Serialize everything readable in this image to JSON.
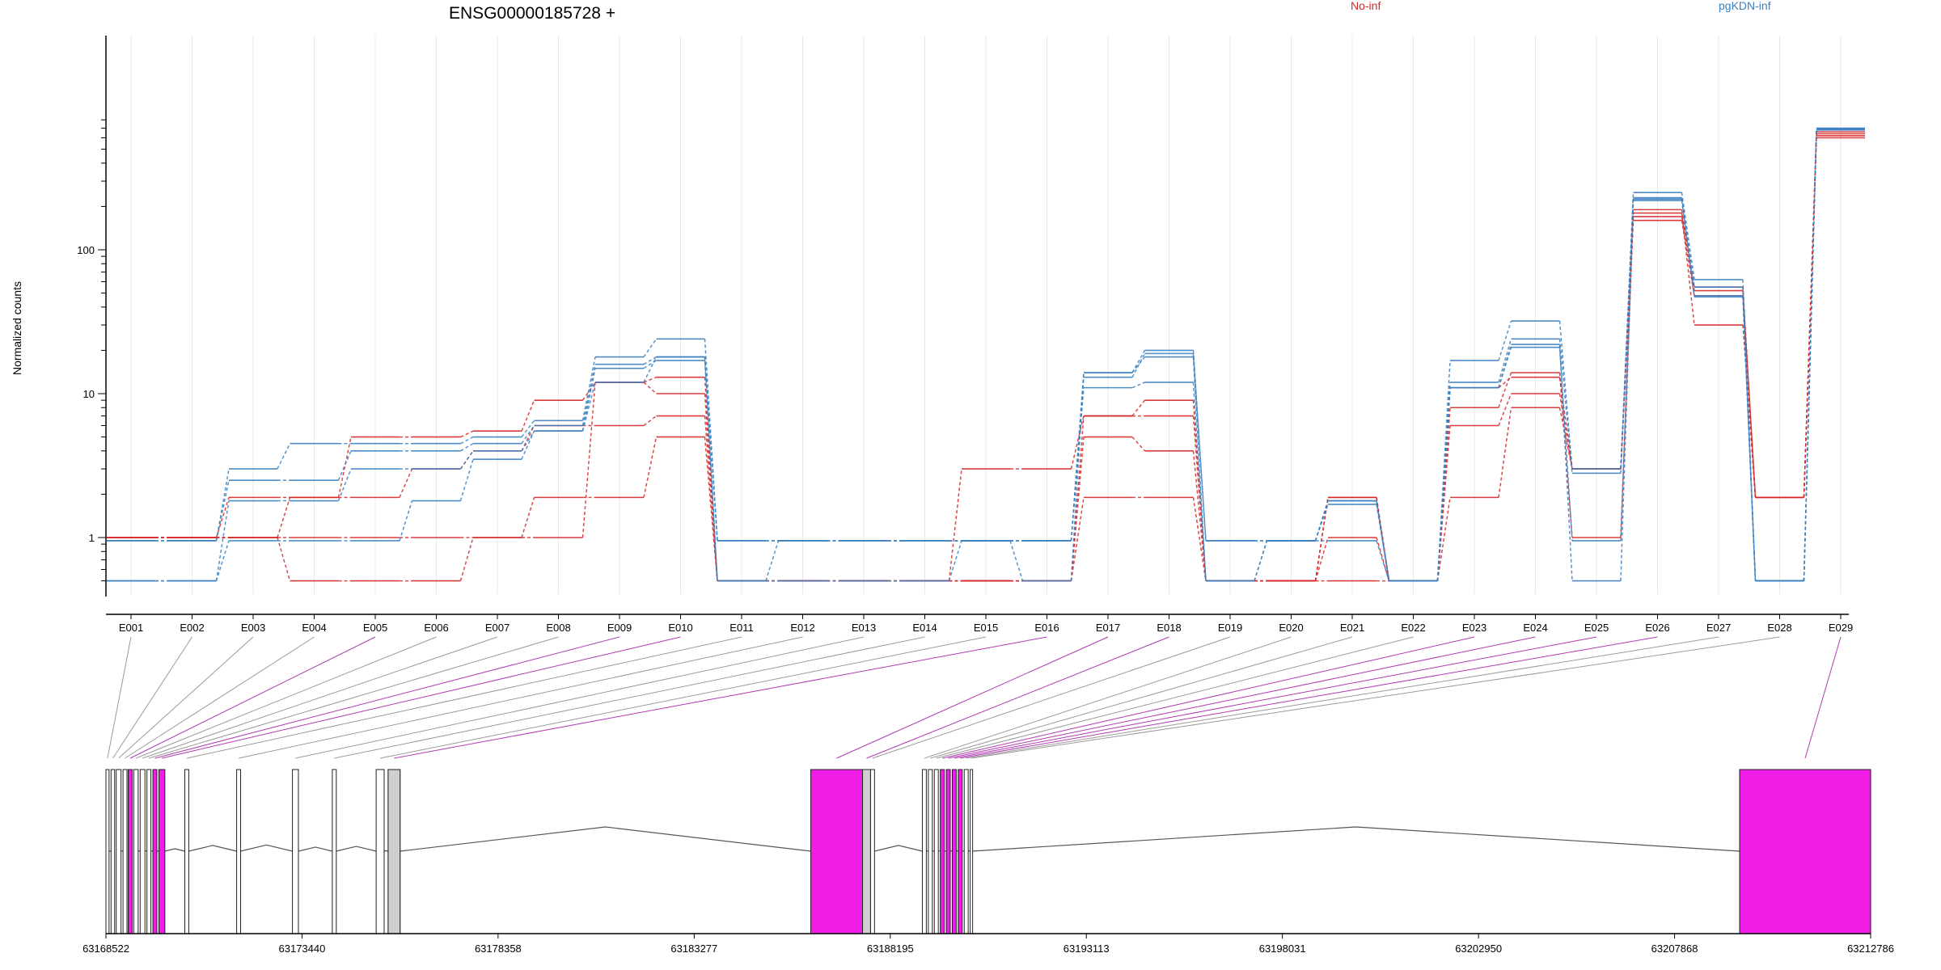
{
  "chart_data": {
    "type": "line",
    "title": "ENSG00000185728 +",
    "ylabel": "Normalized counts",
    "yscale": "log",
    "ylim": [
      0.5,
      800
    ],
    "yticks": [
      {
        "value": 1,
        "label": "1"
      },
      {
        "value": 10,
        "label": "10"
      },
      {
        "value": 100,
        "label": "100"
      }
    ],
    "categories": [
      "E001",
      "E002",
      "E003",
      "E004",
      "E005",
      "E006",
      "E007",
      "E008",
      "E009",
      "E010",
      "E011",
      "E012",
      "E013",
      "E014",
      "E015",
      "E016",
      "E017",
      "E018",
      "E019",
      "E020",
      "E021",
      "E022",
      "E023",
      "E024",
      "E025",
      "E026",
      "E027",
      "E028",
      "E029"
    ],
    "legend": [
      {
        "name": "No-inf",
        "color": "#d62728"
      },
      {
        "name": "pgKDN-inf",
        "color": "#3a7fc0"
      }
    ],
    "series": [
      {
        "group": 0,
        "values": [
          1,
          1,
          1,
          0.5,
          0.5,
          0.5,
          1,
          1,
          12,
          13,
          0.5,
          0.5,
          0.5,
          0.5,
          3,
          3,
          7,
          7,
          0.5,
          0.5,
          1,
          0.5,
          8,
          14,
          1,
          170,
          55,
          1.9,
          600
        ]
      },
      {
        "group": 0,
        "values": [
          1,
          1,
          1.9,
          1.9,
          5,
          5,
          5.5,
          9,
          12,
          10,
          0.5,
          0.5,
          0.5,
          0.5,
          0.5,
          0.5,
          5,
          4,
          0.5,
          0.5,
          0.5,
          0.5,
          6,
          10,
          3,
          180,
          30,
          1.9,
          620
        ]
      },
      {
        "group": 0,
        "values": [
          1,
          1,
          1,
          1,
          1,
          1,
          1,
          1.9,
          1.9,
          5,
          0.5,
          0.5,
          0.5,
          0.5,
          0.5,
          0.5,
          1.9,
          1.9,
          0.5,
          0.5,
          1.9,
          0.5,
          1.9,
          8,
          3,
          160,
          48,
          1.9,
          640
        ]
      },
      {
        "group": 0,
        "values": [
          1,
          1,
          1,
          1.9,
          1.9,
          3,
          4,
          6,
          6,
          7,
          0.5,
          0.5,
          0.5,
          0.5,
          0.5,
          0.5,
          7,
          9,
          0.5,
          0.5,
          1.9,
          0.5,
          11,
          13,
          3,
          190,
          52,
          1.9,
          660
        ]
      },
      {
        "group": 1,
        "values": [
          0.95,
          0.95,
          3,
          4.5,
          4.5,
          4.5,
          5,
          6.5,
          18,
          24,
          0.95,
          0.95,
          0.95,
          0.95,
          0.95,
          0.95,
          14,
          20,
          0.95,
          0.95,
          1.7,
          0.5,
          17,
          32,
          3,
          250,
          62,
          0.5,
          700
        ]
      },
      {
        "group": 1,
        "values": [
          0.95,
          0.95,
          2.5,
          2.5,
          4,
          4,
          4.5,
          6,
          16,
          18,
          0.95,
          0.95,
          0.95,
          0.95,
          0.95,
          0.95,
          13,
          19,
          0.95,
          0.95,
          0.95,
          0.5,
          12,
          24,
          2.8,
          230,
          55,
          0.5,
          690
        ]
      },
      {
        "group": 1,
        "values": [
          0.5,
          0.5,
          1.8,
          1.8,
          3,
          3,
          4,
          5.5,
          15,
          17,
          0.5,
          0.5,
          0.5,
          0.5,
          0.95,
          0.95,
          11,
          12,
          0.5,
          0.95,
          1.8,
          0.5,
          11,
          22,
          0.5,
          220,
          47,
          0.5,
          680
        ]
      },
      {
        "group": 1,
        "values": [
          0.5,
          0.5,
          0.95,
          0.95,
          0.95,
          1.8,
          3.5,
          5.5,
          12,
          18,
          0.5,
          0.95,
          0.95,
          0.95,
          0.95,
          0.5,
          14,
          18,
          0.5,
          0.95,
          1.8,
          0.5,
          11,
          21,
          0.95,
          225,
          48,
          0.5,
          695
        ]
      }
    ],
    "gene_model": {
      "coordinate_labels": [
        "63168522",
        "63173440",
        "63178358",
        "63183277",
        "63188195",
        "63193113",
        "63198031",
        "63202950",
        "63207868",
        "63212786"
      ],
      "range": [
        63168522,
        63212786
      ],
      "exon_starts": [
        63168522,
        63168650,
        63168780,
        63168950,
        63169080,
        63169220,
        63169380,
        63169550,
        63169700,
        63169850,
        63170500,
        63171800,
        63173200,
        63174200,
        63175300,
        63175600,
        63186200,
        63187500,
        63187700,
        63189000,
        63189150,
        63189300,
        63189450,
        63189600,
        63189750,
        63189900,
        63190050,
        63190200,
        63209500
      ],
      "exon_ends": [
        63168600,
        63168740,
        63168900,
        63169050,
        63169180,
        63169330,
        63169500,
        63169650,
        63169800,
        63170000,
        63170600,
        63171900,
        63173350,
        63174300,
        63175500,
        63175900,
        63187500,
        63187700,
        63187800,
        63189100,
        63189250,
        63189400,
        63189550,
        63189700,
        63189850,
        63190000,
        63190150,
        63190250,
        63212786
      ],
      "highlighted_exons": [
        4,
        8,
        9,
        15,
        16,
        17,
        22,
        23,
        24,
        25,
        28
      ]
    }
  }
}
